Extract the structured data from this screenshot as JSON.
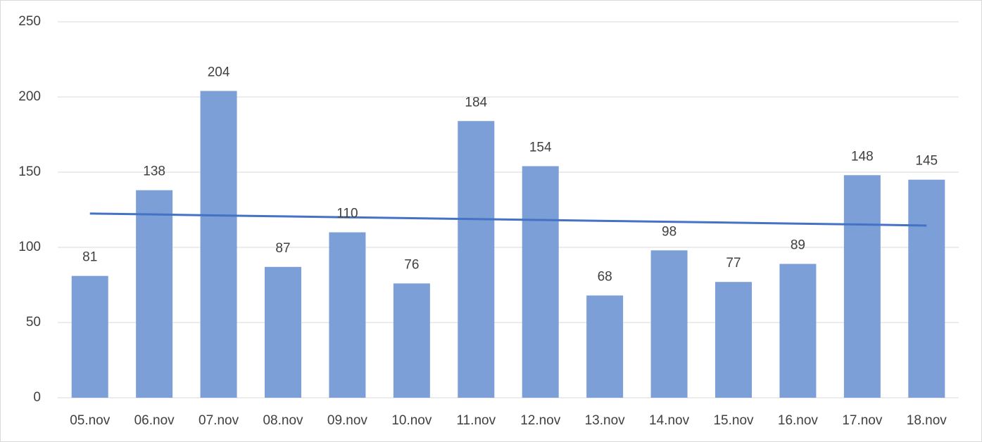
{
  "chart_data": {
    "type": "bar",
    "categories": [
      "05.nov",
      "06.nov",
      "07.nov",
      "08.nov",
      "09.nov",
      "10.nov",
      "11.nov",
      "12.nov",
      "13.nov",
      "14.nov",
      "15.nov",
      "16.nov",
      "17.nov",
      "18.nov"
    ],
    "values": [
      81,
      138,
      204,
      87,
      110,
      76,
      184,
      154,
      68,
      98,
      77,
      89,
      148,
      145
    ],
    "color": "#7b9fd6",
    "trendline": {
      "color": "#4472c4",
      "values": [
        122.5,
        121.9,
        121.2,
        120.6,
        120.0,
        119.4,
        118.8,
        118.2,
        117.6,
        117.0,
        116.4,
        115.8,
        115.2,
        114.5
      ]
    },
    "ylim": [
      0,
      250
    ],
    "yticks": [
      0,
      50,
      100,
      150,
      200,
      250
    ],
    "grid": true,
    "data_labels": true
  }
}
